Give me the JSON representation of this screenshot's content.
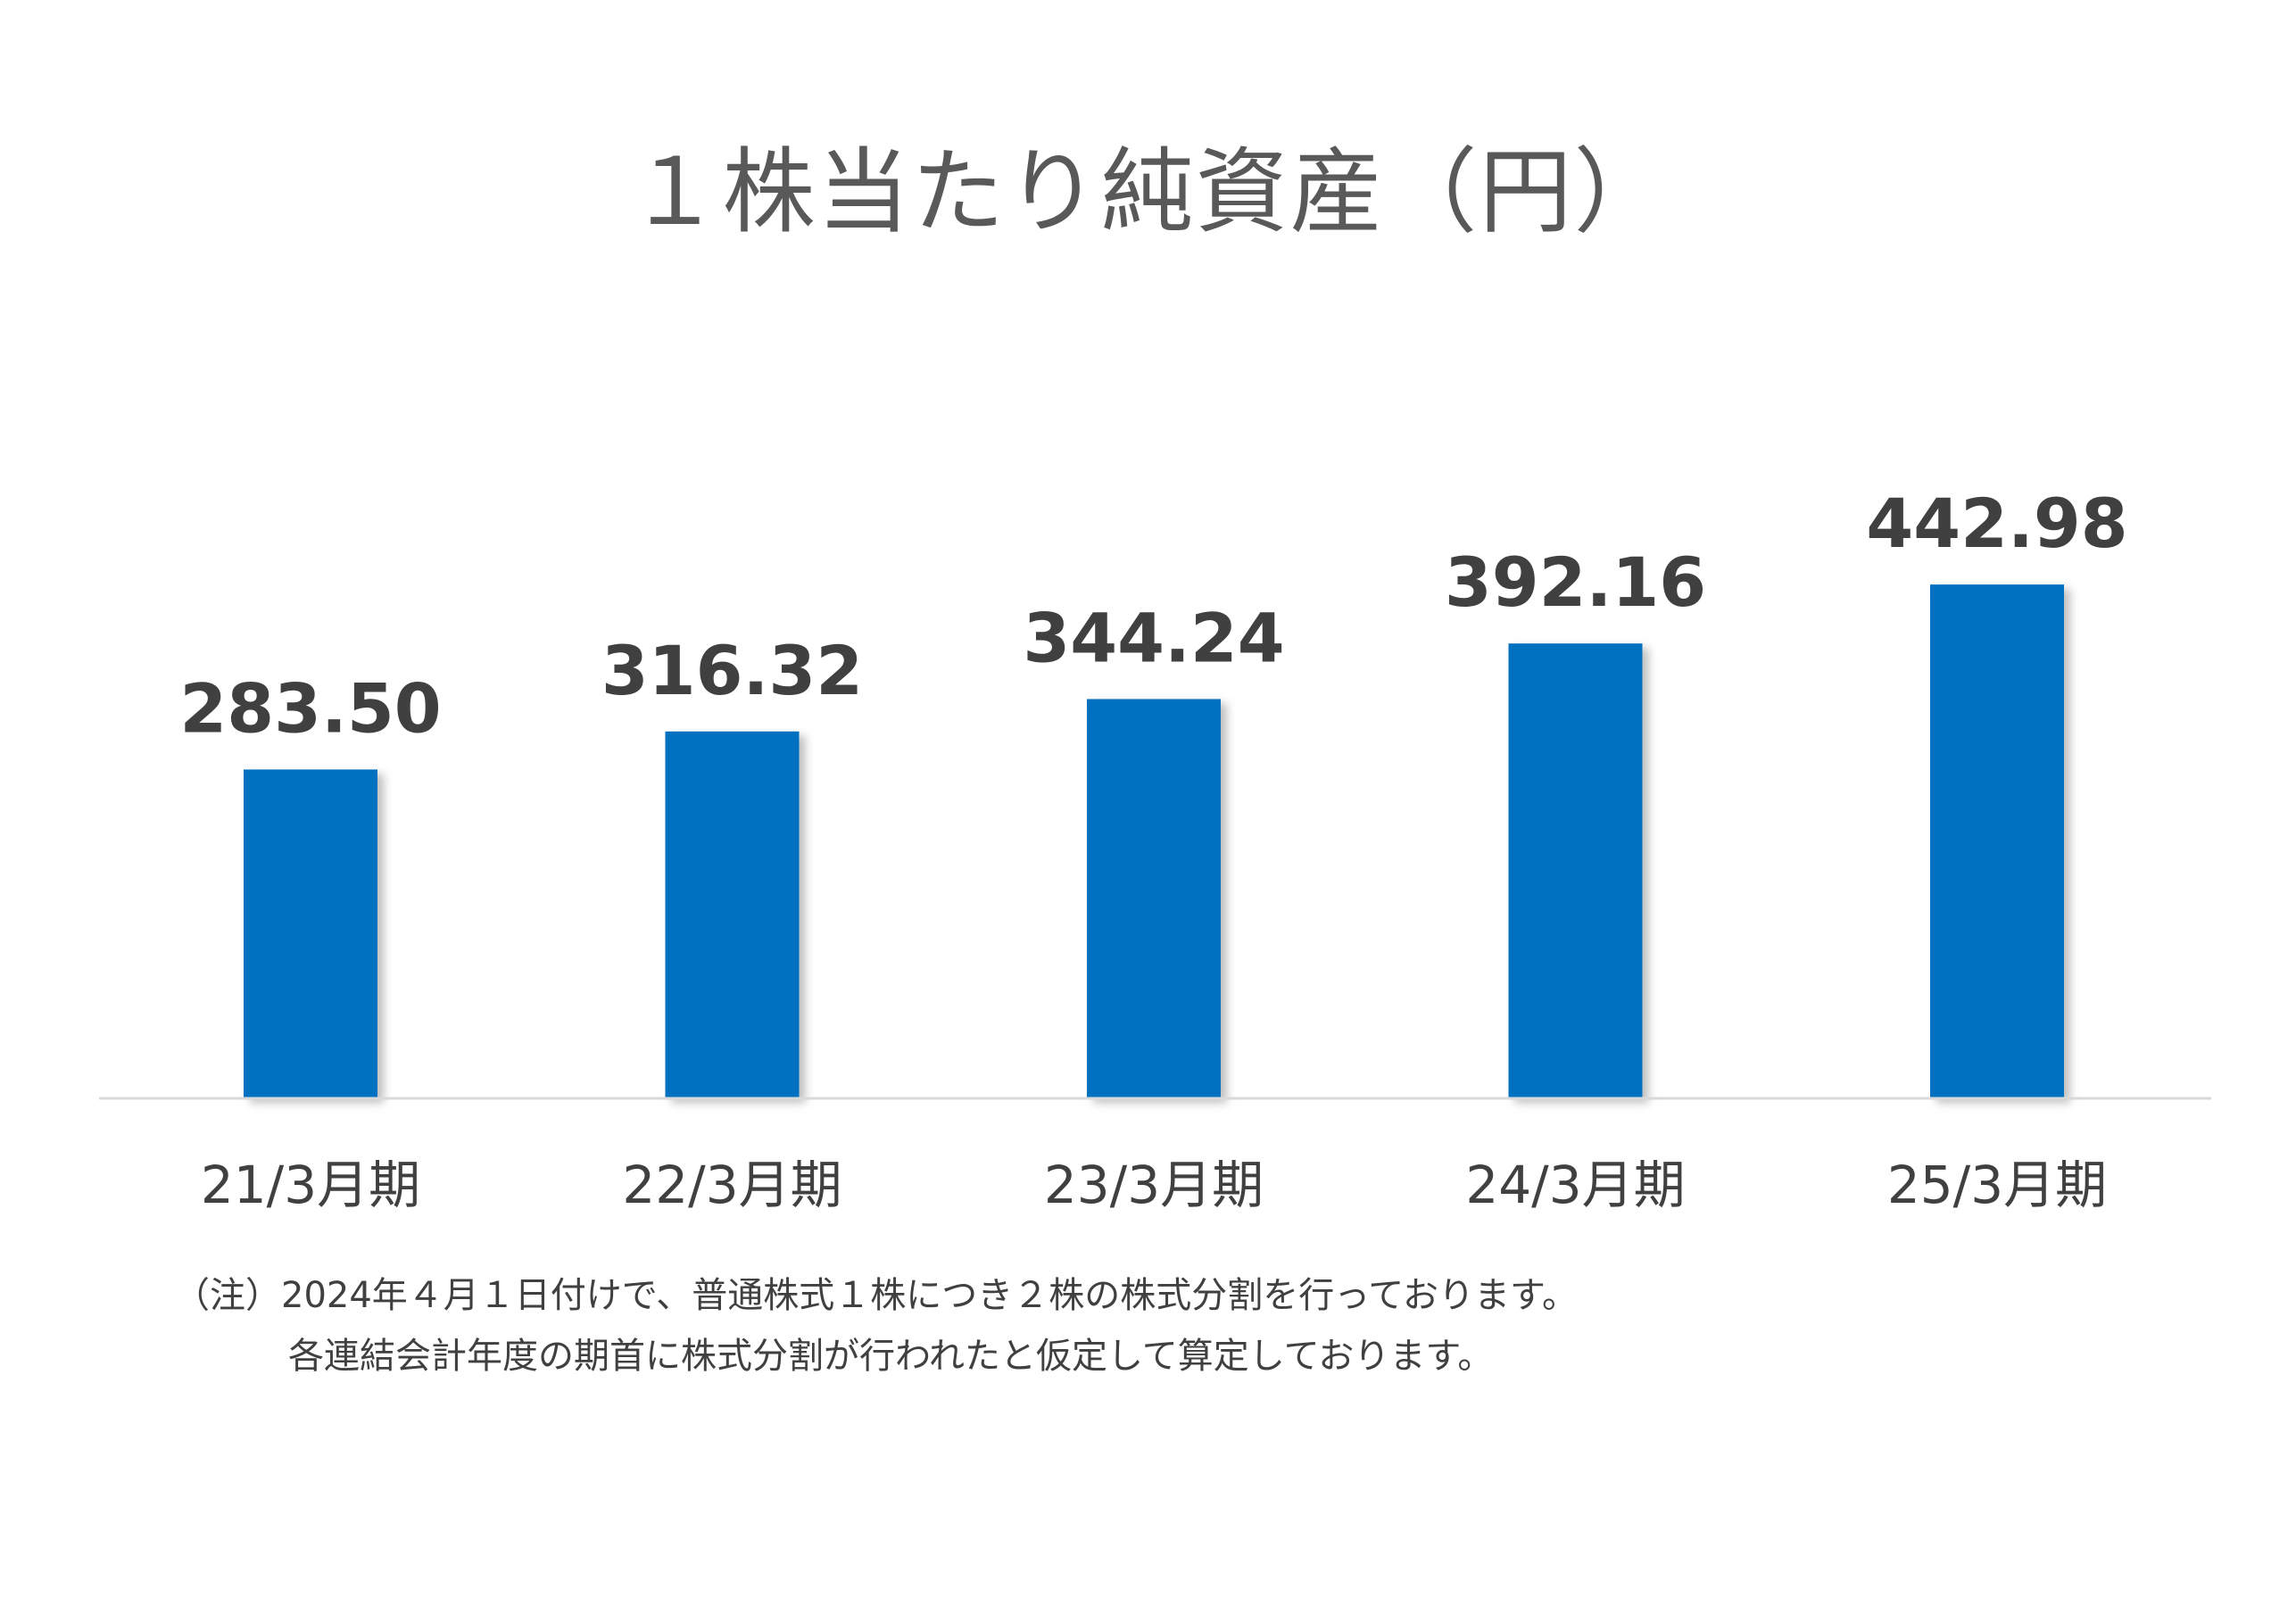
{
  "chart_data": {
    "type": "bar",
    "title": "１株当たり純資産（円）",
    "categories": [
      "21/3月期",
      "22/3月期",
      "23/3月期",
      "24/3月期",
      "25/3月期"
    ],
    "values": [
      283.5,
      316.32,
      344.24,
      392.16,
      442.98
    ],
    "value_labels": [
      "283.50",
      "316.32",
      "344.24",
      "392.16",
      "442.98"
    ],
    "xlabel": "",
    "ylabel": "",
    "ylim": [
      0,
      500
    ],
    "grid": false,
    "legend": "none",
    "bar_color": "#0070C0",
    "axis_color": "#D9D9D9"
  },
  "footnote": {
    "line1": "（注）2024年４月１日付けで、普通株式１株につき２株の株式分割を行っております。",
    "line2": "各連結会計年度の期首に株式分割が行われたと仮定して算定しております。"
  }
}
